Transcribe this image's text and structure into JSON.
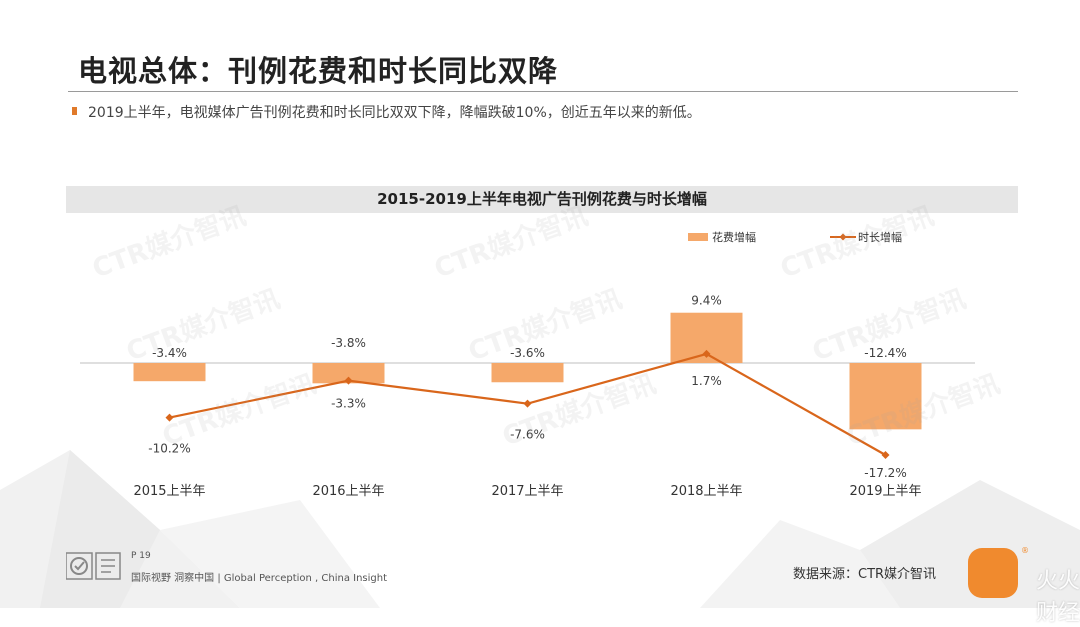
{
  "header": {
    "title": "电视总体：刊例花费和时长同比双降",
    "bullet": "2019上半年，电视媒体广告刊例花费和时长同比双双下降，降幅跌破10%，创近五年以来的新低。"
  },
  "watermark": "CTR媒介智讯",
  "chart_data": {
    "type": "bar",
    "title": "2015-2019上半年电视广告刊例花费与时长增幅",
    "categories": [
      "2015上半年",
      "2016上半年",
      "2017上半年",
      "2018上半年",
      "2019上半年"
    ],
    "series": [
      {
        "name": "花费增幅",
        "kind": "bar",
        "values": [
          -3.4,
          -3.8,
          -3.6,
          9.4,
          -12.4
        ],
        "labels": [
          "-3.4%",
          "-3.8%",
          "-3.6%",
          "9.4%",
          "-12.4%"
        ]
      },
      {
        "name": "时长增幅",
        "kind": "line",
        "values": [
          -10.2,
          -3.3,
          -7.6,
          1.7,
          -17.2
        ],
        "labels": [
          "-10.2%",
          "-3.3%",
          "-7.6%",
          "1.7%",
          "-17.2%"
        ]
      }
    ],
    "legend_position": "top-right",
    "grid": false,
    "colors": {
      "bar": "#f5a86a",
      "line": "#d9661b"
    }
  },
  "footer": {
    "page": "P 19",
    "tagline": "国际视野 洞察中国 | Global Perception , China Insight",
    "source": "数据来源：CTR媒介智讯",
    "brand_text": "火火财经"
  }
}
